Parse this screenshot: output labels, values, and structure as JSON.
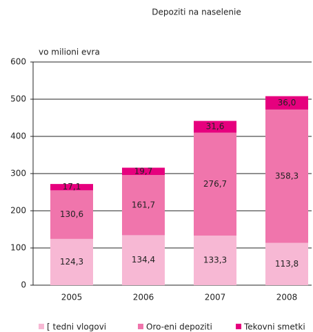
{
  "chart_data": {
    "type": "stacked_bar",
    "title": "Depoziti na naselenie",
    "ylabel": "vo milioni evra",
    "categories": [
      "2005",
      "2006",
      "2007",
      "2008"
    ],
    "series": [
      {
        "name": "[ tedni vlogovi",
        "color": "#f7b8d4",
        "values": [
          124.3,
          134.4,
          133.3,
          113.8
        ],
        "value_labels": [
          "124,3",
          "134,4",
          "133,3",
          "113,8"
        ]
      },
      {
        "name": "Oro-eni depoziti",
        "color": "#f075ac",
        "values": [
          130.6,
          161.7,
          276.7,
          358.3
        ],
        "value_labels": [
          "130,6",
          "161,7",
          "276,7",
          "358,3"
        ]
      },
      {
        "name": "Tekovni smetki",
        "color": "#e6007e",
        "values": [
          17.1,
          19.7,
          31.6,
          36
        ],
        "value_labels": [
          "17,1",
          "19,7",
          "31,6",
          "36,0"
        ]
      }
    ],
    "ylim": [
      0,
      600
    ],
    "yticks": [
      0,
      100,
      200,
      300,
      400,
      500,
      600
    ],
    "grid": true
  }
}
